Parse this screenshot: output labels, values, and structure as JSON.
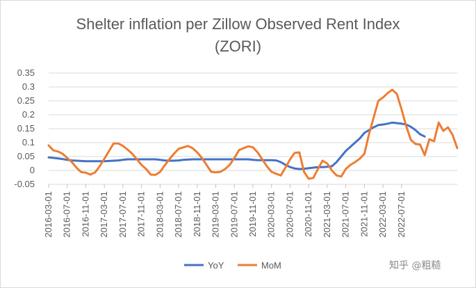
{
  "chart_data": {
    "type": "line",
    "title_line1": "Shelter inflation per Zillow Observed Rent Index",
    "title_line2": "(ZORI)",
    "xlabel": "",
    "ylabel": "",
    "ylim": [
      -0.05,
      0.35
    ],
    "yticks": [
      "0.35",
      "0.3",
      "0.25",
      "0.2",
      "0.15",
      "0.1",
      "0.05",
      "0",
      "-0.05"
    ],
    "ytick_values": [
      0.35,
      0.3,
      0.25,
      0.2,
      0.15,
      0.1,
      0.05,
      0,
      -0.05
    ],
    "xticks": [
      "2016-03-01",
      "2016-07-01",
      "2016-11-01",
      "2017-03-01",
      "2017-07-01",
      "2017-11-01",
      "2018-03-01",
      "2018-07-01",
      "2018-11-01",
      "2019-03-01",
      "2019-07-01",
      "2019-11-01",
      "2020-03-01",
      "2020-07-01",
      "2020-11-01",
      "2021-03-01",
      "2021-07-01",
      "2021-11-01",
      "2022-03-01",
      "2022-07-01"
    ],
    "grid": true,
    "legend_position": "bottom",
    "x_start": "2016-03-01",
    "x_step": "1 month",
    "series": [
      {
        "name": "YoY",
        "color": "#4472c4",
        "values": [
          0.047,
          0.045,
          0.043,
          0.041,
          0.038,
          0.036,
          0.035,
          0.034,
          0.033,
          0.033,
          0.033,
          0.033,
          0.033,
          0.034,
          0.035,
          0.036,
          0.038,
          0.04,
          0.04,
          0.04,
          0.04,
          0.04,
          0.04,
          0.04,
          0.038,
          0.036,
          0.035,
          0.035,
          0.036,
          0.038,
          0.039,
          0.04,
          0.04,
          0.04,
          0.04,
          0.04,
          0.04,
          0.04,
          0.04,
          0.04,
          0.04,
          0.04,
          0.04,
          0.04,
          0.038,
          0.037,
          0.037,
          0.037,
          0.037,
          0.036,
          0.03,
          0.02,
          0.012,
          0.007,
          0.005,
          0.006,
          0.008,
          0.01,
          0.012,
          0.012,
          0.013,
          0.015,
          0.03,
          0.05,
          0.07,
          0.085,
          0.1,
          0.115,
          0.135,
          0.145,
          0.155,
          0.163,
          0.165,
          0.168,
          0.172,
          0.17,
          0.168,
          0.165,
          0.157,
          0.145,
          0.13,
          0.122
        ]
      },
      {
        "name": "MoM",
        "color": "#ed7d31",
        "values": [
          0.09,
          0.072,
          0.068,
          0.06,
          0.045,
          0.03,
          0.01,
          -0.006,
          -0.008,
          -0.015,
          -0.007,
          0.015,
          0.042,
          0.07,
          0.097,
          0.097,
          0.088,
          0.075,
          0.06,
          0.04,
          0.02,
          0.005,
          -0.015,
          -0.016,
          -0.005,
          0.018,
          0.04,
          0.06,
          0.078,
          0.083,
          0.088,
          0.08,
          0.065,
          0.045,
          0.02,
          -0.005,
          -0.007,
          -0.005,
          0.005,
          0.02,
          0.045,
          0.073,
          0.08,
          0.087,
          0.083,
          0.065,
          0.04,
          0.015,
          -0.005,
          -0.012,
          -0.018,
          0.01,
          0.04,
          0.063,
          0.065,
          -0.005,
          -0.03,
          -0.027,
          0.005,
          0.035,
          0.025,
          0.0,
          -0.018,
          -0.022,
          0.005,
          0.02,
          0.03,
          0.042,
          0.06,
          0.13,
          0.19,
          0.25,
          0.262,
          0.278,
          0.29,
          0.275,
          0.22,
          0.16,
          0.11,
          0.095,
          0.093,
          0.055,
          0.112,
          0.105,
          0.172,
          0.142,
          0.155,
          0.128,
          0.08
        ]
      }
    ]
  },
  "watermark": "知乎 @粗糙"
}
